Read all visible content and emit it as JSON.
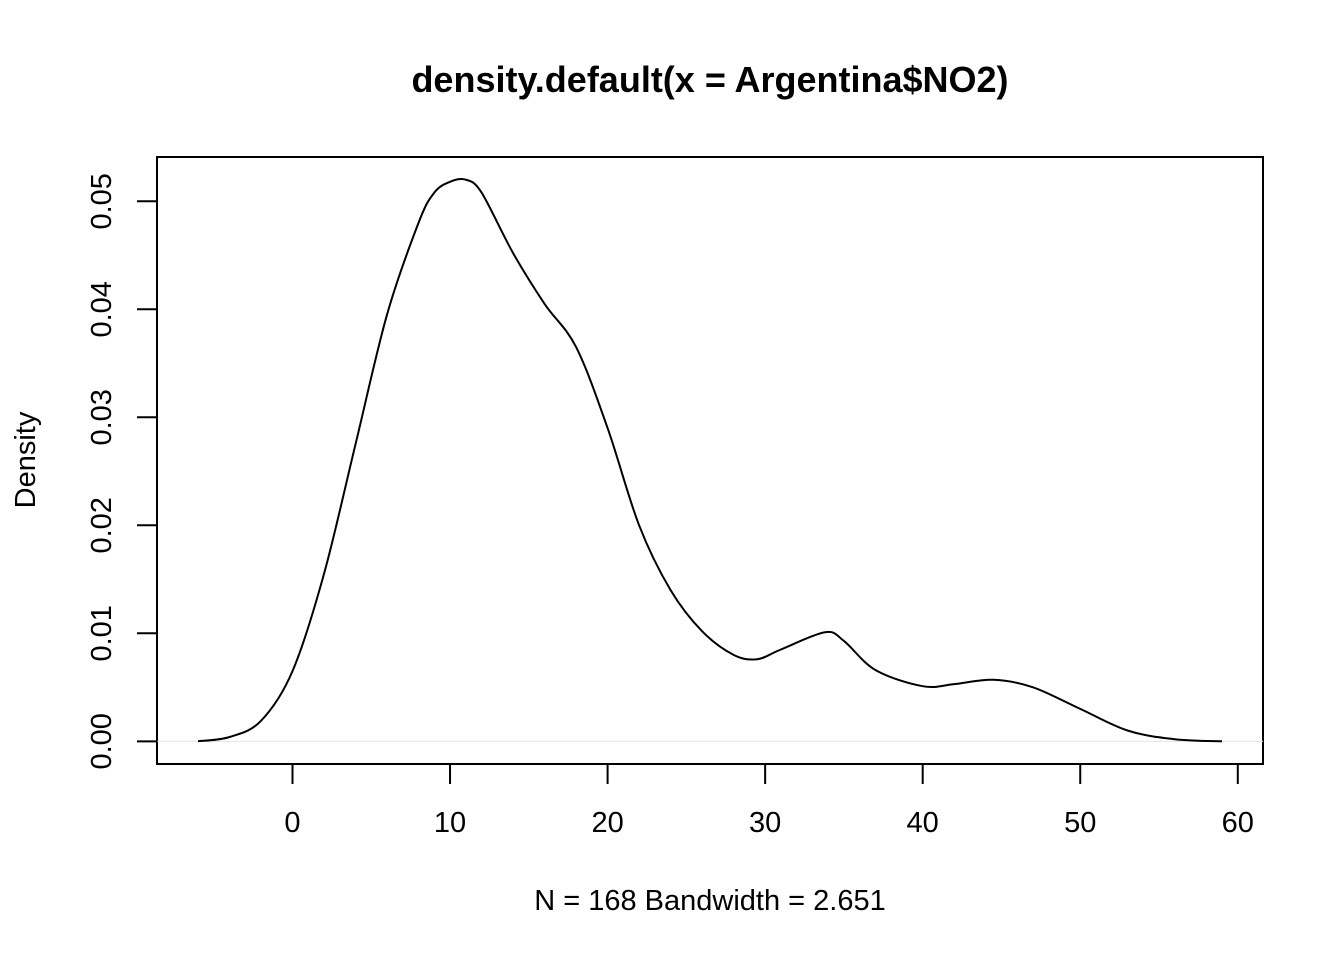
{
  "chart_data": {
    "type": "line",
    "title": "density.default(x = Argentina$NO2)",
    "xlabel": "N = 168   Bandwidth = 2.651",
    "ylabel": "Density",
    "xlim": [
      -8.6,
      61.6
    ],
    "ylim": [
      -0.0021,
      0.0541
    ],
    "x_ticks": [
      0,
      10,
      20,
      30,
      40,
      50,
      60
    ],
    "x_tick_labels": [
      "0",
      "10",
      "20",
      "30",
      "40",
      "50",
      "60"
    ],
    "y_ticks": [
      0.0,
      0.01,
      0.02,
      0.03,
      0.04,
      0.05
    ],
    "y_tick_labels": [
      "0.00",
      "0.01",
      "0.02",
      "0.03",
      "0.04",
      "0.05"
    ],
    "grid": false,
    "legend": "none",
    "series": [
      {
        "x": [
          -6.0,
          -4.0,
          -2.0,
          0.0,
          2.0,
          4.0,
          6.0,
          8.0,
          9.0,
          10.0,
          11.0,
          12.0,
          14.0,
          16.0,
          18.0,
          20.0,
          22.0,
          24.0,
          26.0,
          28.0,
          29.5,
          31.0,
          33.8,
          35.0,
          37.0,
          40.0,
          42.0,
          44.5,
          47.0,
          50.0,
          53.0,
          56.0,
          59.0
        ],
        "y": [
          0.0,
          0.0004,
          0.0019,
          0.0065,
          0.0155,
          0.0275,
          0.0395,
          0.048,
          0.0508,
          0.0518,
          0.052,
          0.0508,
          0.0452,
          0.0405,
          0.0365,
          0.029,
          0.02,
          0.014,
          0.0102,
          0.008,
          0.0076,
          0.0085,
          0.0101,
          0.0093,
          0.0066,
          0.0051,
          0.0053,
          0.0057,
          0.005,
          0.003,
          0.001,
          0.0002,
          0.0
        ]
      }
    ],
    "colors": {
      "line": "#000000",
      "zero_line": "#e6e6e6"
    }
  }
}
